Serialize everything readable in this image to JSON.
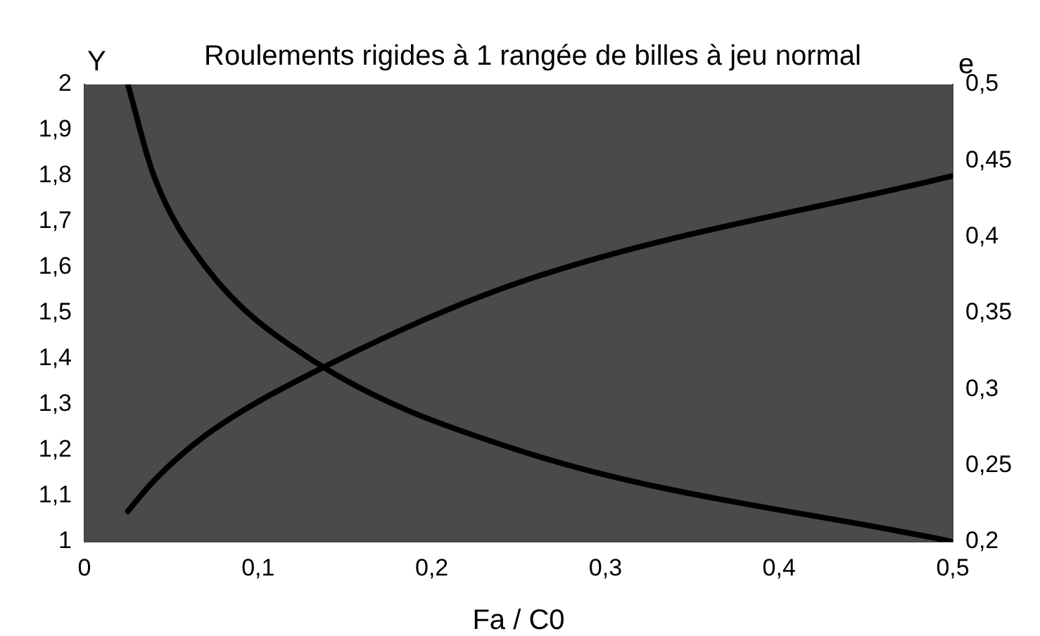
{
  "chart_data": {
    "type": "line",
    "title": "Roulements rigides à 1 rangée de billes à jeu normal",
    "xlabel": "Fa / C0",
    "ylabel": "Y",
    "y2label": "e",
    "x": [
      0.025,
      0.04,
      0.07,
      0.13,
      0.25,
      0.5
    ],
    "series": [
      {
        "name": null,
        "color": "#000000",
        "values": [
          2.0,
          1.8,
          1.6,
          1.4,
          1.2,
          1.0
        ]
      },
      {
        "name": null,
        "color": "#000000",
        "values": [
          0.22,
          0.24,
          0.27,
          0.31,
          0.37,
          0.44
        ],
        "axis": "y2"
      }
    ],
    "xlim": [
      0,
      0.5
    ],
    "xticks": [
      0,
      {
        "value": 0.1,
        "label": "0,1"
      },
      {
        "value": 0.2,
        "label": "0,2"
      },
      {
        "value": 0.3,
        "label": "0,3"
      },
      {
        "value": 0.4,
        "label": "0,4"
      },
      {
        "value": 0.5,
        "label": "0,5"
      }
    ],
    "ylim": [
      1,
      2
    ],
    "yticks": [
      1,
      {
        "value": 1.1,
        "label": "1,1"
      },
      {
        "value": 1.2,
        "label": "1,2"
      },
      {
        "value": 1.3,
        "label": "1,3"
      },
      {
        "value": 1.4,
        "label": "1,4"
      },
      {
        "value": 1.5,
        "label": "1,5"
      },
      {
        "value": 1.6,
        "label": "1,6"
      },
      {
        "value": 1.7,
        "label": "1,7"
      },
      {
        "value": 1.8,
        "label": "1,8"
      },
      {
        "value": 1.9,
        "label": "1,9"
      },
      2
    ],
    "y2lim": [
      0.2,
      0.5
    ],
    "y2ticks": [
      {
        "value": 0.2,
        "label": "0,2"
      },
      {
        "value": 0.25,
        "label": "0,25"
      },
      {
        "value": 0.3,
        "label": "0,3"
      },
      {
        "value": 0.35,
        "label": "0,35"
      },
      {
        "value": 0.4,
        "label": "0,4"
      },
      {
        "value": 0.45,
        "label": "0,45"
      },
      {
        "value": 0.5,
        "label": "0,5"
      }
    ],
    "grid": false,
    "legend": false,
    "marker": "none",
    "line_style": "solid"
  }
}
